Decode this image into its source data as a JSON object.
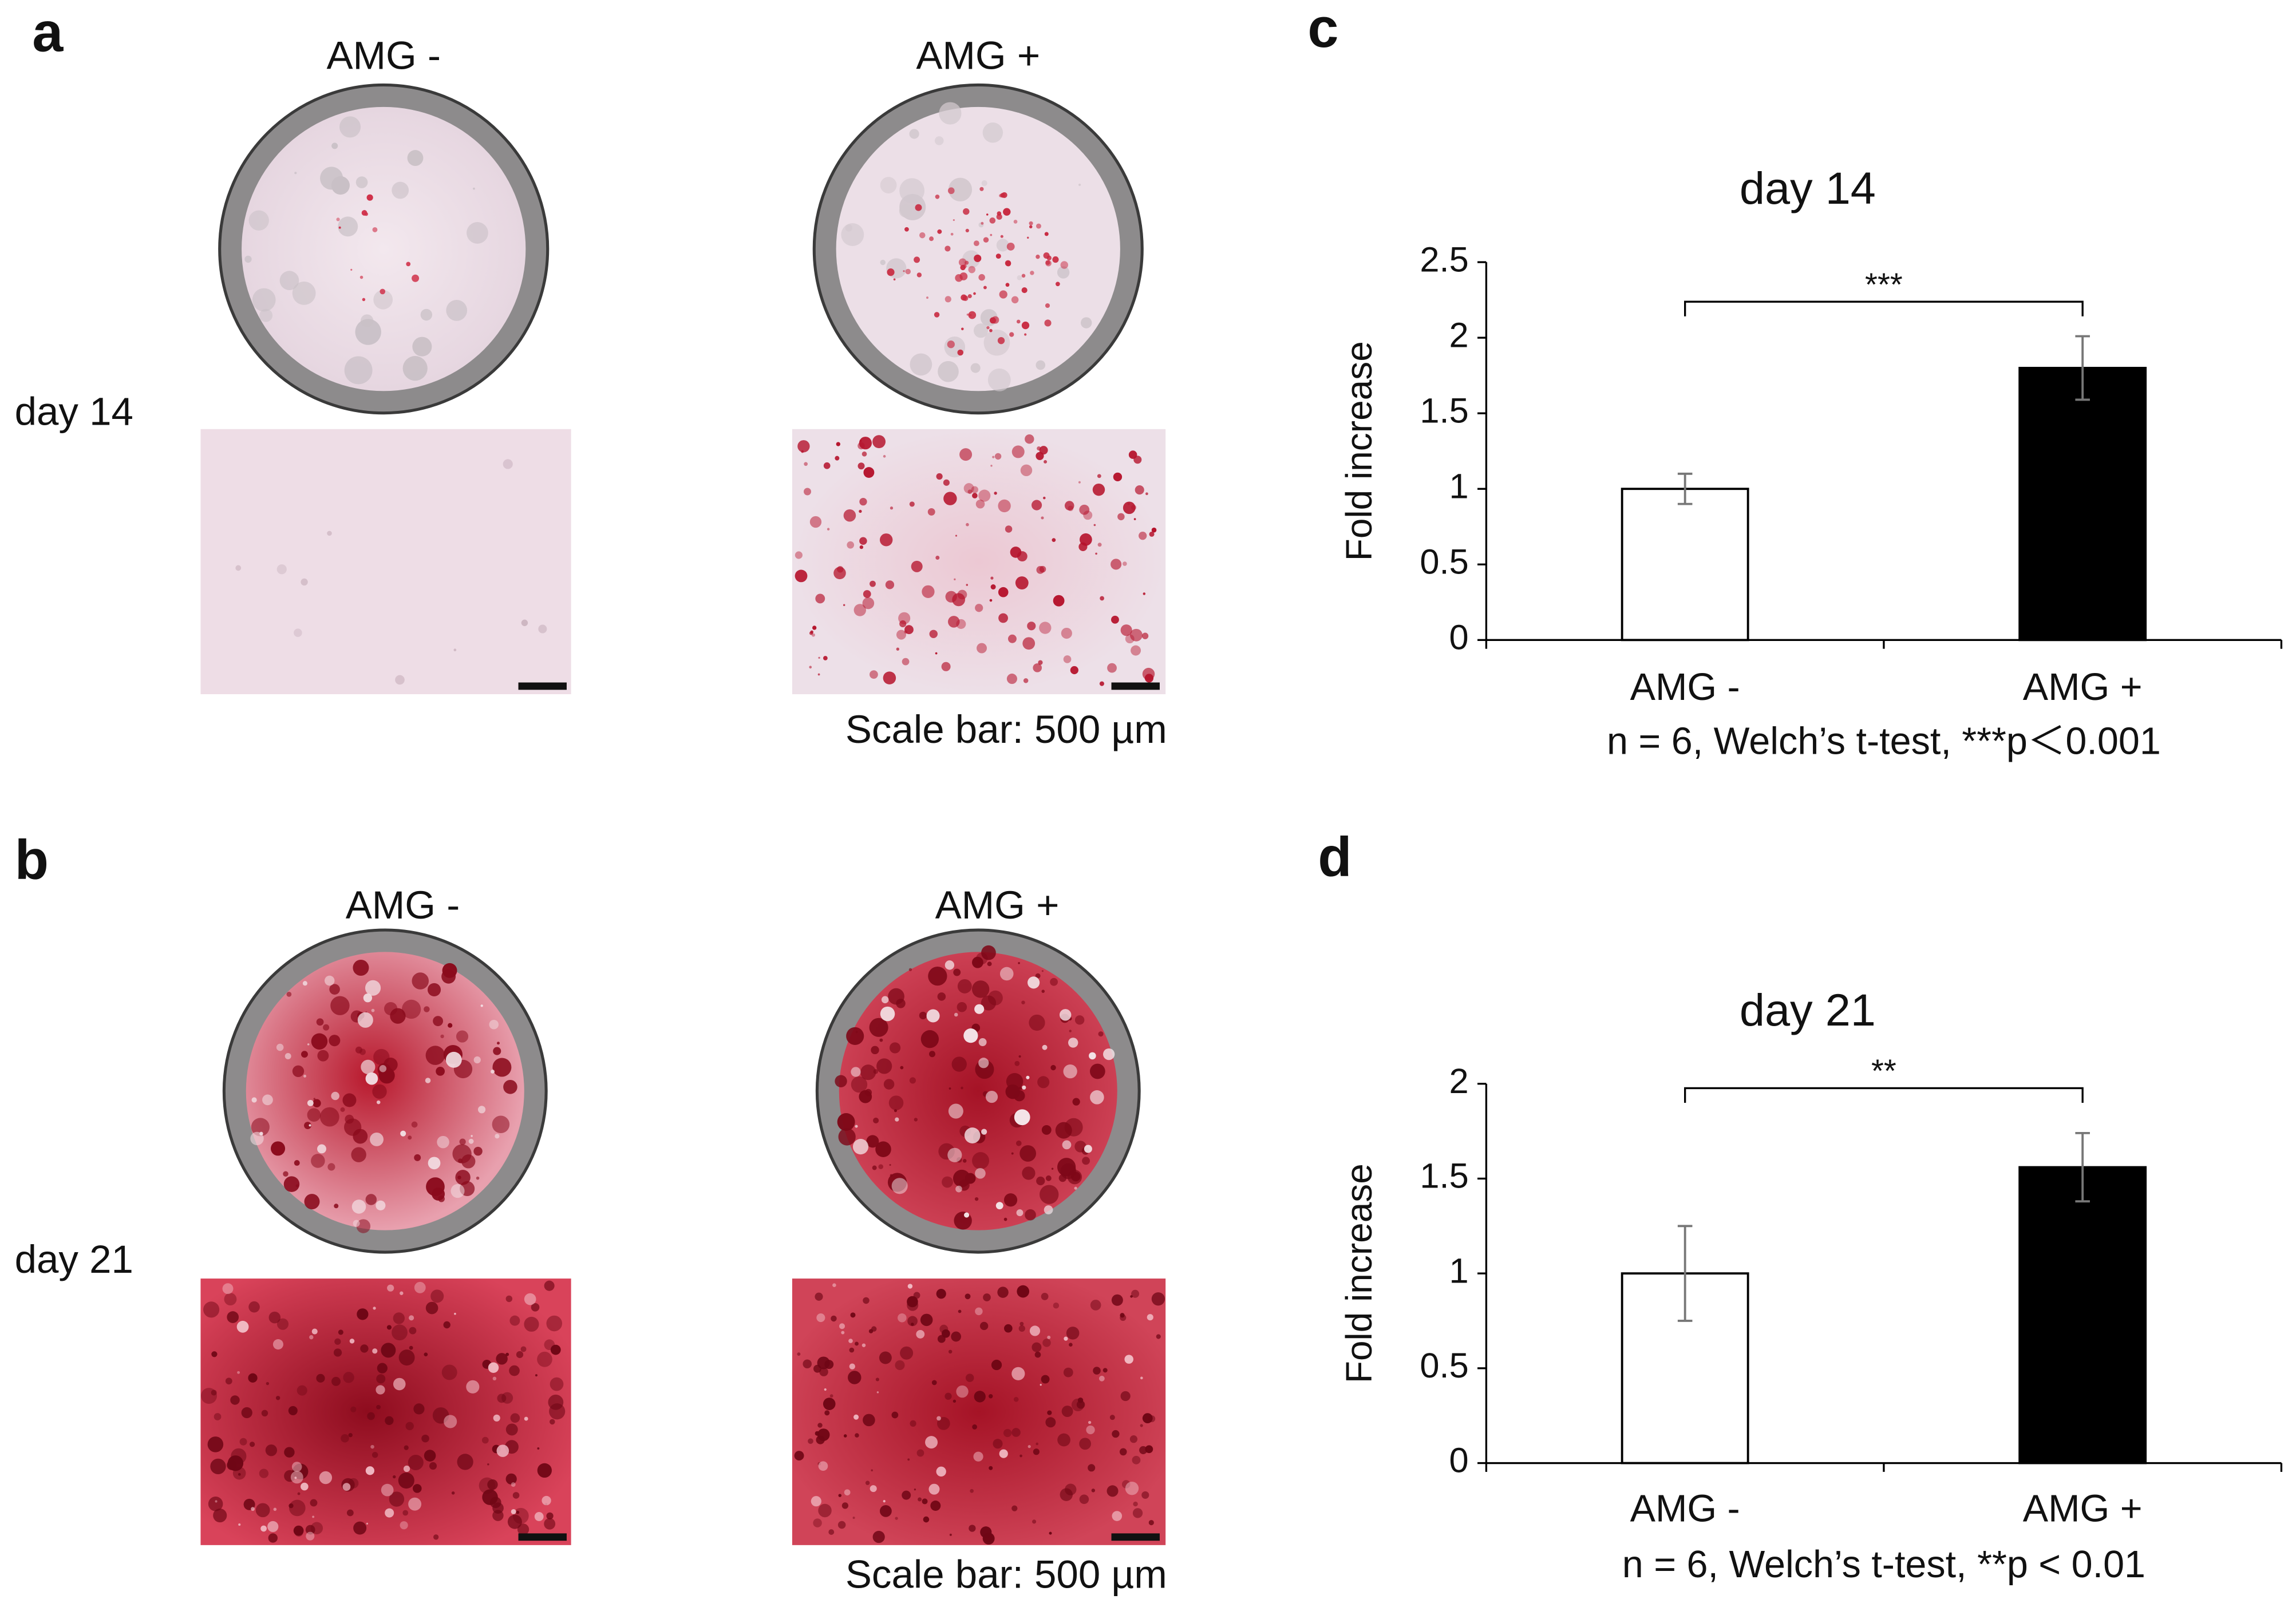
{
  "panel_labels": [
    "a",
    "b",
    "c",
    "d"
  ],
  "photo_panels": [
    {
      "row_label": "day 14",
      "columns": [
        "AMG -",
        "AMG +"
      ],
      "scale_note": "Scale bar: 500 µm"
    },
    {
      "row_label": "day 21",
      "columns": [
        "AMG -",
        "AMG +"
      ],
      "scale_note": "Scale bar: 500 µm"
    }
  ],
  "chart_data": [
    {
      "type": "bar",
      "title": "day 14",
      "y_label": "Fold increase",
      "categories": [
        "AMG -",
        "AMG +"
      ],
      "values": [
        1,
        1.8
      ],
      "errors": [
        0.1,
        0.21
      ],
      "colors": [
        "#ffffff",
        "#000000"
      ],
      "ylim": [
        0,
        2.5
      ],
      "yticks": [
        0,
        0.5,
        1,
        1.5,
        2,
        2.5
      ],
      "annotation": "***",
      "footnote": "n = 6, Welch’s t-test, ***p＜0.001"
    },
    {
      "type": "bar",
      "title": "day 21",
      "y_label": "Fold increase",
      "categories": [
        "AMG -",
        "AMG +"
      ],
      "values": [
        1,
        1.56
      ],
      "errors": [
        0.25,
        0.18
      ],
      "colors": [
        "#ffffff",
        "#000000"
      ],
      "ylim": [
        0,
        2
      ],
      "yticks": [
        0,
        0.5,
        1,
        1.5,
        2
      ],
      "annotation": "**",
      "footnote": "n = 6, Welch’s t-test, **p < 0.01"
    }
  ]
}
